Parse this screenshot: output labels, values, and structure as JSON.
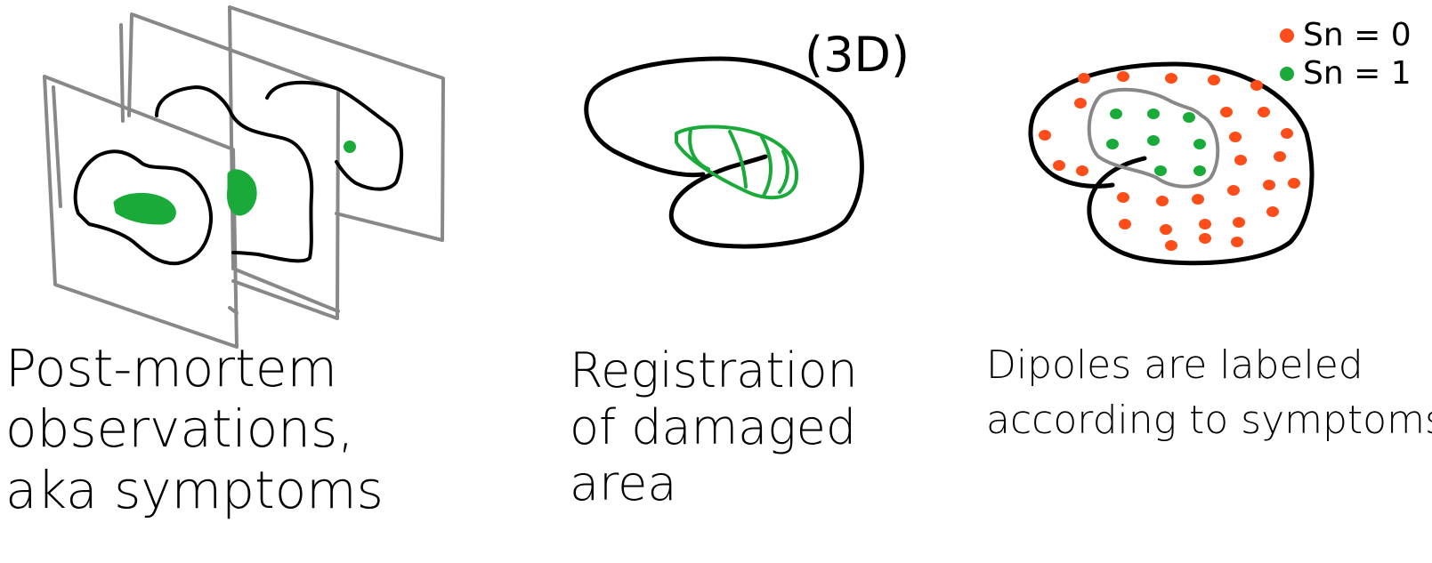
{
  "colors": {
    "outline": "#000000",
    "frame": "#888888",
    "damage": "#1aaa3a",
    "label_zero": "#ff4d1a",
    "label_one": "#1aaa3a"
  },
  "panel1": {
    "caption_lines": [
      "Post-mortem",
      "observations,",
      "aka symptoms"
    ]
  },
  "panel2": {
    "annotation": "(3D)",
    "caption_lines": [
      "Registration",
      "of damaged",
      "area"
    ]
  },
  "panel3": {
    "legend": [
      {
        "label": "Sn = 0",
        "color": "#ff4d1a"
      },
      {
        "label": "Sn = 1",
        "color": "#1aaa3a"
      }
    ],
    "caption_lines": [
      "Dipoles are labeled",
      "according to symptoms"
    ]
  }
}
